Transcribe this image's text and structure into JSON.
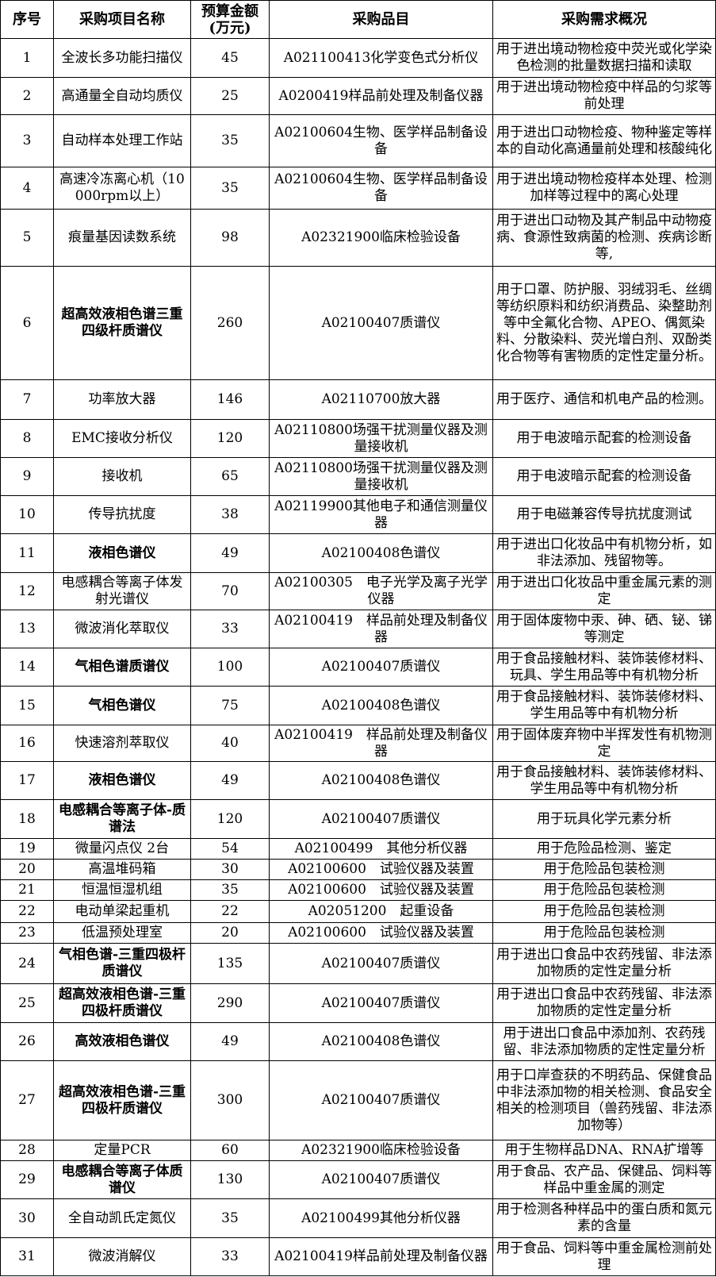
{
  "table": {
    "headers": [
      "序号",
      "采购项目名称",
      "预算金额(万元)",
      "采购品目",
      "采购需求概况"
    ],
    "rows": [
      {
        "no": "1",
        "name": "全波长多功能扫描仪",
        "bold": false,
        "budget": "45",
        "category": "A021100413化学变色式分析仪",
        "requirement": "用于进出境动物检疫中荧光或化学染色检测的批量数据扫描和读取"
      },
      {
        "no": "2",
        "name": "高通量全自动均质仪",
        "bold": false,
        "budget": "25",
        "category": "A0200419样品前处理及制备仪器",
        "requirement": "用于进出境动物检疫中样品的匀浆等前处理"
      },
      {
        "no": "3",
        "name": "自动样本处理工作站",
        "bold": false,
        "budget": "35",
        "category": "A02100604生物、医学样品制备设备",
        "requirement": "用于进出口动物检疫、物种鉴定等样本的自动化高通量前处理和核酸纯化"
      },
      {
        "no": "4",
        "name": "高速冷冻离心机（10000rpm以上）",
        "bold": false,
        "budget": "35",
        "category": "A02100604生物、医学样品制备设备",
        "requirement": "用于进出境动物检疫样本处理、检测加样等过程中的离心处理"
      },
      {
        "no": "5",
        "name": "痕量基因读数系统",
        "bold": false,
        "budget": "98",
        "category": "A02321900临床检验设备",
        "requirement": "用于进出口动物及其产制品中动物疫病、食源性致病菌的检测、疾病诊断等,"
      },
      {
        "no": "6",
        "name": "超高效液相色谱三重四级杆质谱仪",
        "bold": true,
        "budget": "260",
        "category": "A02100407质谱仪",
        "requirement": "用于口罩、防护服、羽绒羽毛、丝绸等纺织原料和纺织消费品、染整助剂等中全氟化合物、APEO、偶氮染料、分散染料、荧光增白剂、双酚类化合物等有害物质的定性定量分析。"
      },
      {
        "no": "7",
        "name": "功率放大器",
        "bold": false,
        "budget": "146",
        "category": "A02110700放大器",
        "requirement": "用于医疗、通信和机电产品的检测。"
      },
      {
        "no": "8",
        "name": "EMC接收分析仪",
        "bold": false,
        "budget": "120",
        "category": "A02110800场强干扰测量仪器及测量接收机",
        "requirement": "用于电波暗示配套的检测设备"
      },
      {
        "no": "9",
        "name": "接收机",
        "bold": false,
        "budget": "65",
        "category": "A02110800场强干扰测量仪器及测量接收机",
        "requirement": "用于电波暗示配套的检测设备"
      },
      {
        "no": "10",
        "name": "传导抗扰度",
        "bold": false,
        "budget": "38",
        "category": "A02119900其他电子和通信测量仪器",
        "requirement": "用于电磁兼容传导抗扰度测试"
      },
      {
        "no": "11",
        "name": "液相色谱仪",
        "bold": true,
        "budget": "49",
        "category": "A02100408色谱仪",
        "requirement": "用于进出口化妆品中有机物分析，如非法添加、残留物等。"
      },
      {
        "no": "12",
        "name": "电感耦合等离子体发射光谱仪",
        "bold": false,
        "budget": "70",
        "category": "A02100305　电子光学及离子光学仪器",
        "requirement": "用于进出口化妆品中重金属元素的测定"
      },
      {
        "no": "13",
        "name": "微波消化萃取仪",
        "bold": false,
        "budget": "33",
        "category": "A02100419　样品前处理及制备仪器",
        "requirement": "用于固体废物中汞、砷、硒、铋、锑等测定"
      },
      {
        "no": "14",
        "name": "气相色谱质谱仪",
        "bold": true,
        "budget": "100",
        "category": "A02100407质谱仪",
        "requirement": "用于食品接触材料、装饰装修材料、玩具、学生用品等中有机物分析"
      },
      {
        "no": "15",
        "name": "气相色谱仪",
        "bold": true,
        "budget": "75",
        "category": "A02100408色谱仪",
        "requirement": "用于食品接触材料、装饰装修材料、学生用品等中有机物分析"
      },
      {
        "no": "16",
        "name": "快速溶剂萃取仪",
        "bold": false,
        "budget": "40",
        "category": "A02100419　样品前处理及制备仪器",
        "requirement": "用于固体废弃物中半挥发性有机物测定"
      },
      {
        "no": "17",
        "name": "液相色谱仪",
        "bold": true,
        "budget": "49",
        "category": "A02100408色谱仪",
        "requirement": "用于食品接触材料、装饰装修材料、学生用品等中有机物分析"
      },
      {
        "no": "18",
        "name": "电感耦合等离子体-质谱法",
        "bold": true,
        "budget": "120",
        "category": "A02100407质谱仪",
        "requirement": "用于玩具化学元素分析"
      },
      {
        "no": "19",
        "name": "微量闪点仪 2台",
        "bold": false,
        "budget": "54",
        "category": "A02100499　其他分析仪器",
        "requirement": "用于危险品检测、鉴定"
      },
      {
        "no": "20",
        "name": "高温堆码箱",
        "bold": false,
        "budget": "30",
        "category": "A02100600　试验仪器及装置",
        "requirement": "用于危险品包装检测"
      },
      {
        "no": "21",
        "name": "恒温恒湿机组",
        "bold": false,
        "budget": "35",
        "category": "A02100600　试验仪器及装置",
        "requirement": "用于危险品包装检测"
      },
      {
        "no": "22",
        "name": "电动单梁起重机",
        "bold": false,
        "budget": "22",
        "category": "A02051200　起重设备",
        "requirement": "用于危险品包装检测"
      },
      {
        "no": "23",
        "name": "低温预处理室",
        "bold": false,
        "budget": "20",
        "category": "A02100600　试验仪器及装置",
        "requirement": "用于危险品包装检测"
      },
      {
        "no": "24",
        "name": "气相色谱-三重四极杆质谱仪",
        "bold": true,
        "budget": "135",
        "category": "A02100407质谱仪",
        "requirement": "用于进出口食品中农药残留、非法添加物质的定性定量分析"
      },
      {
        "no": "25",
        "name": "超高效液相色谱-三重四极杆质谱仪",
        "bold": true,
        "budget": "290",
        "category": "A02100407质谱仪",
        "requirement": "用于进出口食品中农药残留、非法添加物质的定性定量分析"
      },
      {
        "no": "26",
        "name": "高效液相色谱仪",
        "bold": true,
        "budget": "49",
        "category": "A02100408色谱仪",
        "requirement": "用于进出口食品中添加剂、农药残留、非法添加物质的定性定量分析"
      },
      {
        "no": "27",
        "name": "超高效液相色谱-三重四极杆质谱仪",
        "bold": true,
        "budget": "300",
        "category": "A02100407质谱仪",
        "requirement": "用于口岸查获的不明药品、保健食品中非法添加物的相关检测、食品安全相关的检测项目（兽药残留、非法添加物等）"
      },
      {
        "no": "28",
        "name": "定量PCR",
        "bold": false,
        "budget": "60",
        "category": "A02321900临床检验设备",
        "requirement": "用于生物样品DNA、RNA扩增等"
      },
      {
        "no": "29",
        "name": "电感耦合等离子体质谱仪",
        "bold": true,
        "budget": "130",
        "category": "A02100407质谱仪",
        "requirement": "用于食品、农产品、保健品、饲料等样品中重金属的测定"
      },
      {
        "no": "30",
        "name": "全自动凯氏定氮仪",
        "bold": false,
        "budget": "35",
        "category": "A02100499其他分析仪器",
        "requirement": "用于检测各种样品中的蛋白质和氮元素的含量"
      },
      {
        "no": "31",
        "name": "微波消解仪",
        "bold": false,
        "budget": "33",
        "category": "A02100419样品前处理及制备仪器",
        "requirement": "用于食品、饲料等中重金属检测前处理"
      }
    ]
  }
}
